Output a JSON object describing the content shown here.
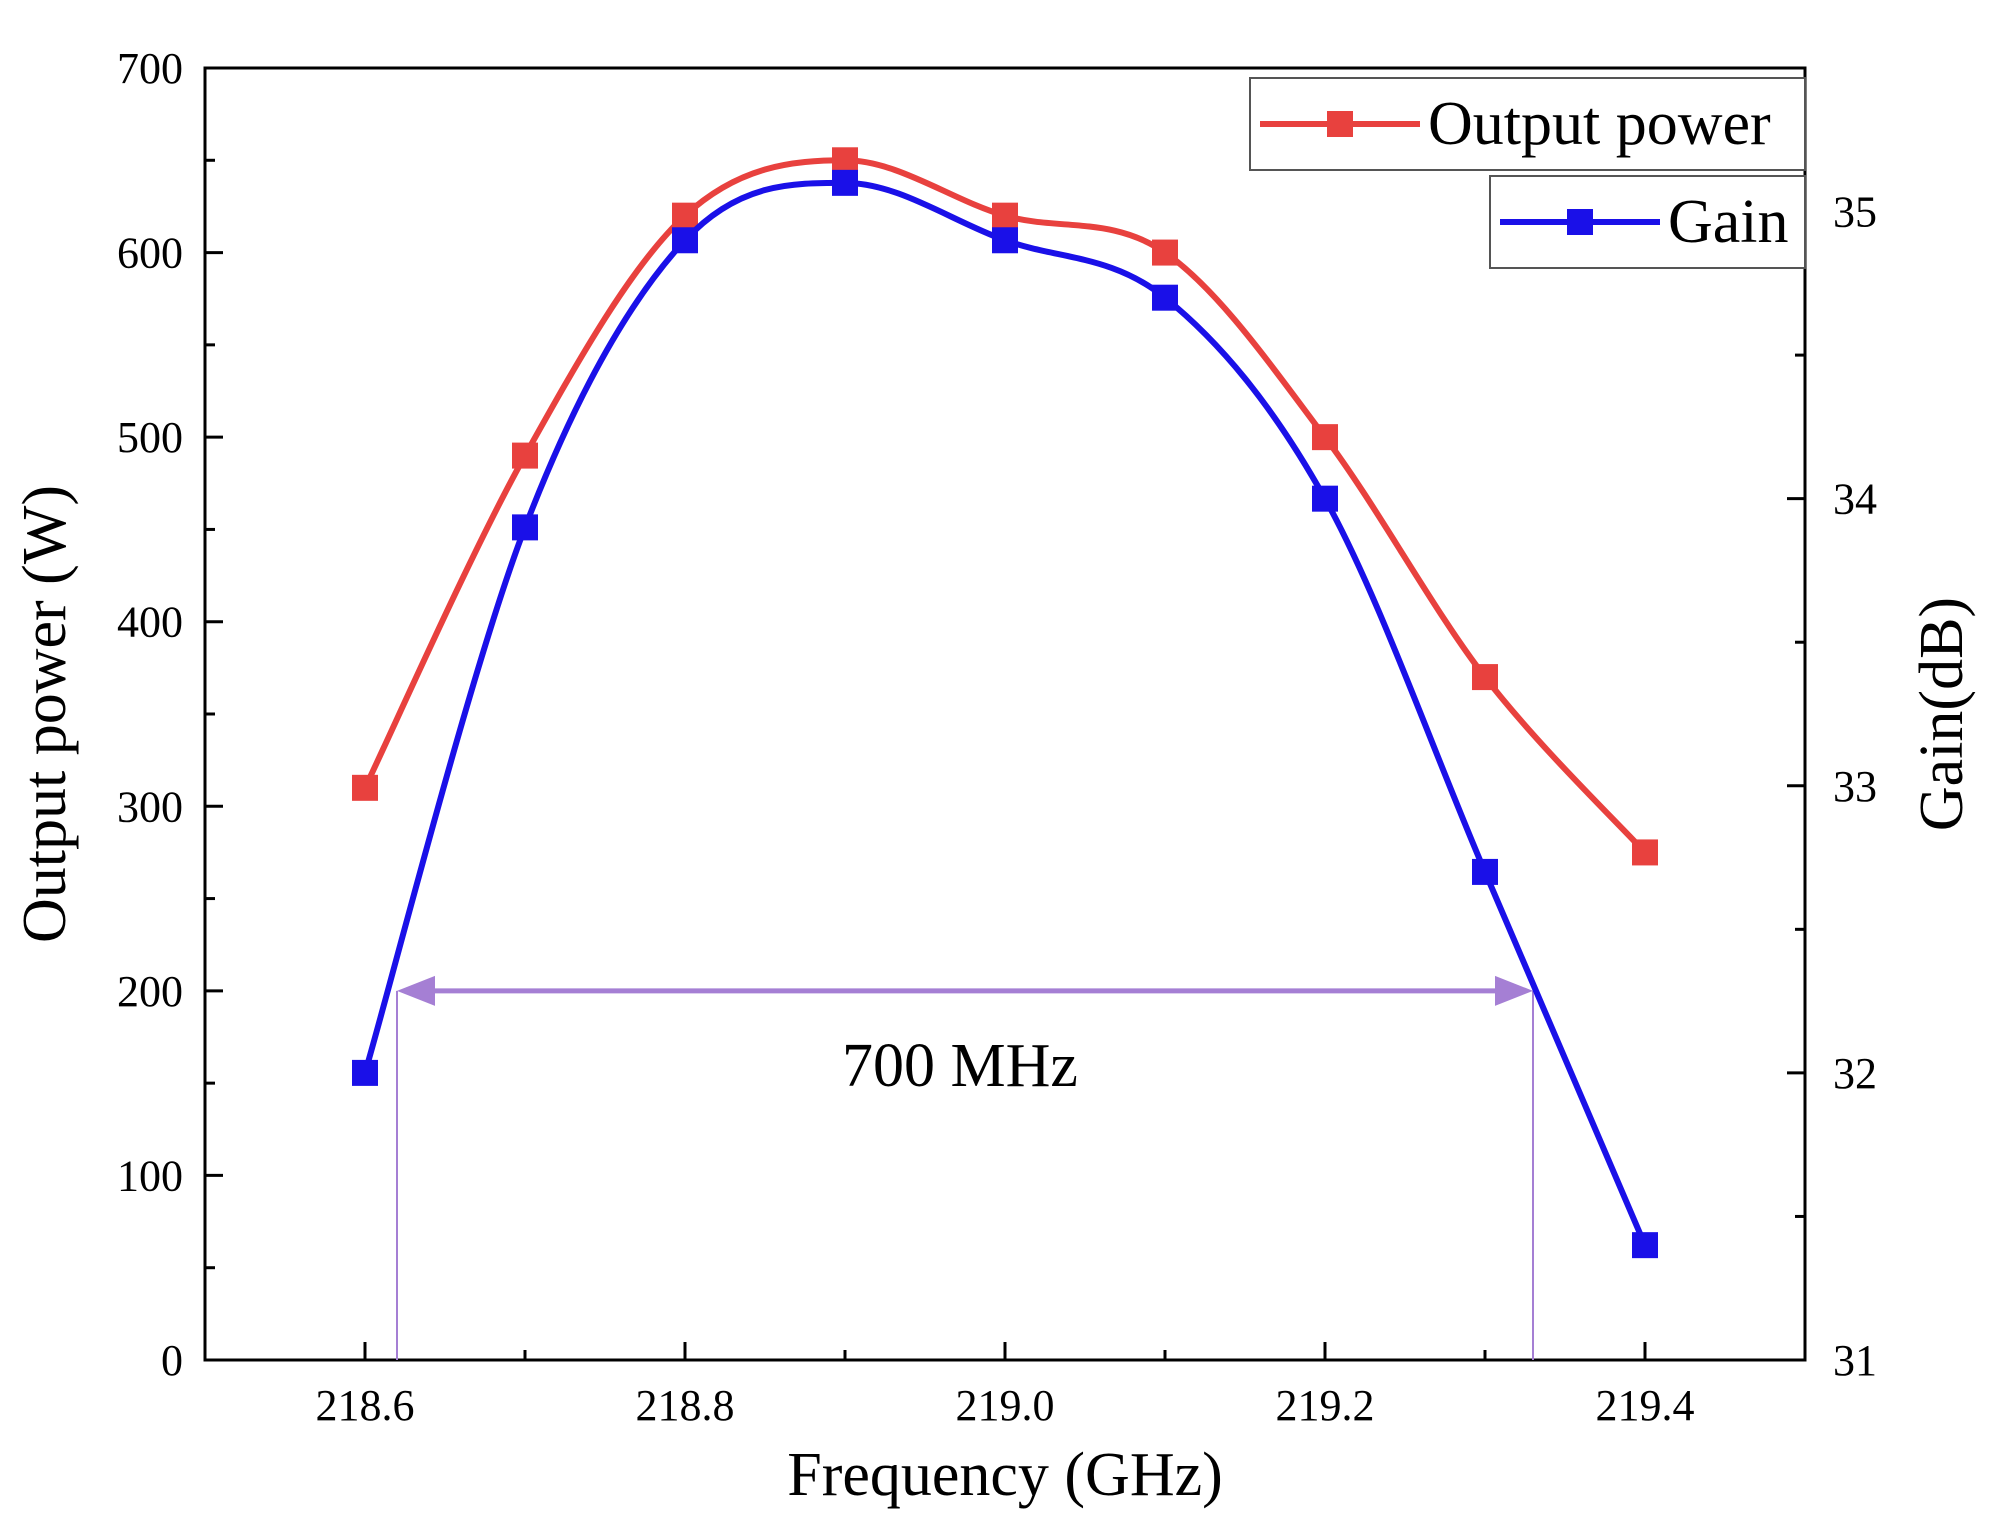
{
  "chart_data": {
    "type": "line",
    "title": "",
    "xlabel": "Frequency (GHz)",
    "ylabel": "Output power (W)",
    "y2label": "Gain(dB)",
    "xlim": [
      218.5,
      219.5
    ],
    "ylim": [
      0,
      700
    ],
    "y2lim": [
      31,
      35.5
    ],
    "x_ticks": [
      "218.6",
      "218.8",
      "219.0",
      "219.2",
      "219.4"
    ],
    "x_tick_values": [
      218.6,
      218.8,
      219.0,
      219.2,
      219.4
    ],
    "y_ticks": [
      "0",
      "100",
      "200",
      "300",
      "400",
      "500",
      "600",
      "700"
    ],
    "y_tick_values": [
      0,
      100,
      200,
      300,
      400,
      500,
      600,
      700
    ],
    "y2_ticks": [
      "31",
      "32",
      "33",
      "34",
      "35"
    ],
    "y2_tick_values": [
      31,
      32,
      33,
      34,
      35
    ],
    "x": [
      218.6,
      218.7,
      218.8,
      218.9,
      219.0,
      219.1,
      219.2,
      219.3,
      219.4
    ],
    "series": [
      {
        "name": "Output power",
        "axis": "left",
        "color": "#e8413e",
        "values": [
          310,
          490,
          620,
          650,
          620,
          600,
          500,
          370,
          275
        ]
      },
      {
        "name": "Gain",
        "axis": "right",
        "color": "#1a10e8",
        "values": [
          32.0,
          33.9,
          34.9,
          35.1,
          34.9,
          34.7,
          34.0,
          32.7,
          31.4
        ]
      }
    ],
    "annotation": {
      "text": "700 MHz",
      "x_start": 218.62,
      "x_end": 219.33,
      "y": 200,
      "color": "#a57fd4"
    },
    "legend_position": "top-right",
    "grid": false
  }
}
